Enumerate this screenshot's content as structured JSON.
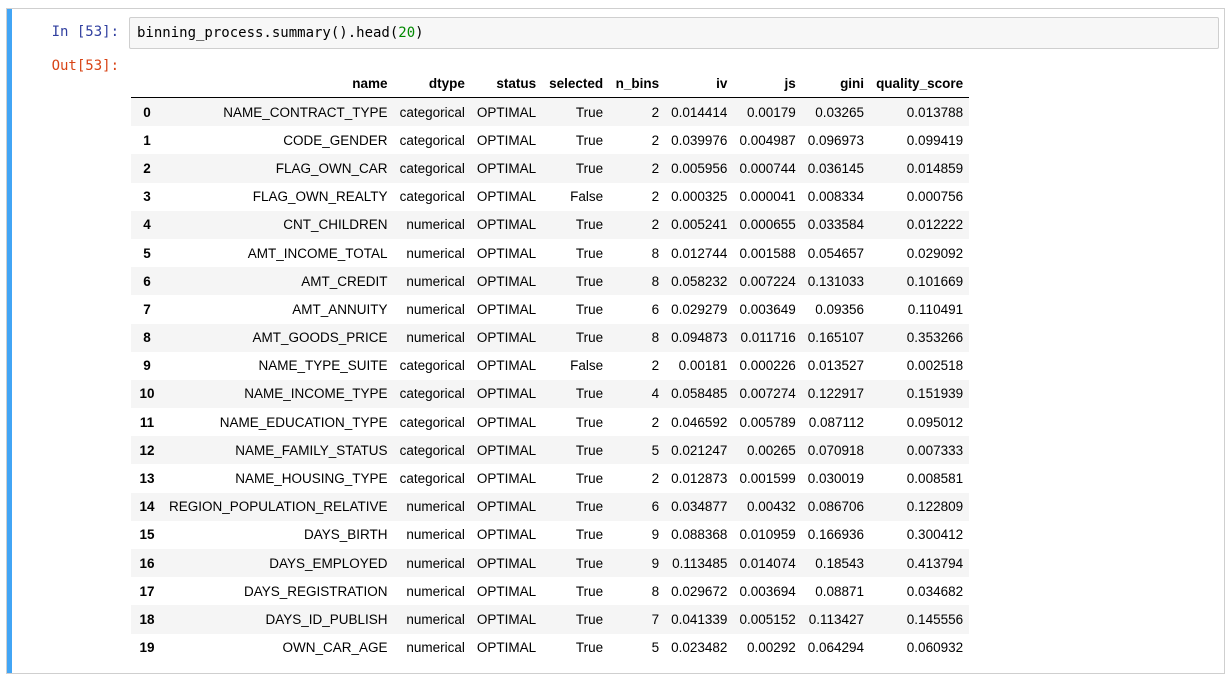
{
  "cell": {
    "in_prompt": "In [53]:",
    "out_prompt": "Out[53]:",
    "code_prefix": "binning_process.summary().head(",
    "code_arg": "20",
    "code_suffix": ")"
  },
  "table": {
    "columns": [
      "",
      "name",
      "dtype",
      "status",
      "selected",
      "n_bins",
      "iv",
      "js",
      "gini",
      "quality_score"
    ],
    "rows": [
      [
        "0",
        "NAME_CONTRACT_TYPE",
        "categorical",
        "OPTIMAL",
        "True",
        "2",
        "0.014414",
        "0.00179",
        "0.03265",
        "0.013788"
      ],
      [
        "1",
        "CODE_GENDER",
        "categorical",
        "OPTIMAL",
        "True",
        "2",
        "0.039976",
        "0.004987",
        "0.096973",
        "0.099419"
      ],
      [
        "2",
        "FLAG_OWN_CAR",
        "categorical",
        "OPTIMAL",
        "True",
        "2",
        "0.005956",
        "0.000744",
        "0.036145",
        "0.014859"
      ],
      [
        "3",
        "FLAG_OWN_REALTY",
        "categorical",
        "OPTIMAL",
        "False",
        "2",
        "0.000325",
        "0.000041",
        "0.008334",
        "0.000756"
      ],
      [
        "4",
        "CNT_CHILDREN",
        "numerical",
        "OPTIMAL",
        "True",
        "2",
        "0.005241",
        "0.000655",
        "0.033584",
        "0.012222"
      ],
      [
        "5",
        "AMT_INCOME_TOTAL",
        "numerical",
        "OPTIMAL",
        "True",
        "8",
        "0.012744",
        "0.001588",
        "0.054657",
        "0.029092"
      ],
      [
        "6",
        "AMT_CREDIT",
        "numerical",
        "OPTIMAL",
        "True",
        "8",
        "0.058232",
        "0.007224",
        "0.131033",
        "0.101669"
      ],
      [
        "7",
        "AMT_ANNUITY",
        "numerical",
        "OPTIMAL",
        "True",
        "6",
        "0.029279",
        "0.003649",
        "0.09356",
        "0.110491"
      ],
      [
        "8",
        "AMT_GOODS_PRICE",
        "numerical",
        "OPTIMAL",
        "True",
        "8",
        "0.094873",
        "0.011716",
        "0.165107",
        "0.353266"
      ],
      [
        "9",
        "NAME_TYPE_SUITE",
        "categorical",
        "OPTIMAL",
        "False",
        "2",
        "0.00181",
        "0.000226",
        "0.013527",
        "0.002518"
      ],
      [
        "10",
        "NAME_INCOME_TYPE",
        "categorical",
        "OPTIMAL",
        "True",
        "4",
        "0.058485",
        "0.007274",
        "0.122917",
        "0.151939"
      ],
      [
        "11",
        "NAME_EDUCATION_TYPE",
        "categorical",
        "OPTIMAL",
        "True",
        "2",
        "0.046592",
        "0.005789",
        "0.087112",
        "0.095012"
      ],
      [
        "12",
        "NAME_FAMILY_STATUS",
        "categorical",
        "OPTIMAL",
        "True",
        "5",
        "0.021247",
        "0.00265",
        "0.070918",
        "0.007333"
      ],
      [
        "13",
        "NAME_HOUSING_TYPE",
        "categorical",
        "OPTIMAL",
        "True",
        "2",
        "0.012873",
        "0.001599",
        "0.030019",
        "0.008581"
      ],
      [
        "14",
        "REGION_POPULATION_RELATIVE",
        "numerical",
        "OPTIMAL",
        "True",
        "6",
        "0.034877",
        "0.00432",
        "0.086706",
        "0.122809"
      ],
      [
        "15",
        "DAYS_BIRTH",
        "numerical",
        "OPTIMAL",
        "True",
        "9",
        "0.088368",
        "0.010959",
        "0.166936",
        "0.300412"
      ],
      [
        "16",
        "DAYS_EMPLOYED",
        "numerical",
        "OPTIMAL",
        "True",
        "9",
        "0.113485",
        "0.014074",
        "0.18543",
        "0.413794"
      ],
      [
        "17",
        "DAYS_REGISTRATION",
        "numerical",
        "OPTIMAL",
        "True",
        "8",
        "0.029672",
        "0.003694",
        "0.08871",
        "0.034682"
      ],
      [
        "18",
        "DAYS_ID_PUBLISH",
        "numerical",
        "OPTIMAL",
        "True",
        "7",
        "0.041339",
        "0.005152",
        "0.113427",
        "0.145556"
      ],
      [
        "19",
        "OWN_CAR_AGE",
        "numerical",
        "OPTIMAL",
        "True",
        "5",
        "0.023482",
        "0.00292",
        "0.064294",
        "0.060932"
      ]
    ]
  },
  "colors": {
    "selected_bar": "#42a5f5",
    "in_prompt": "#303f9f",
    "out_prompt": "#d84315",
    "code_number": "#008800"
  }
}
